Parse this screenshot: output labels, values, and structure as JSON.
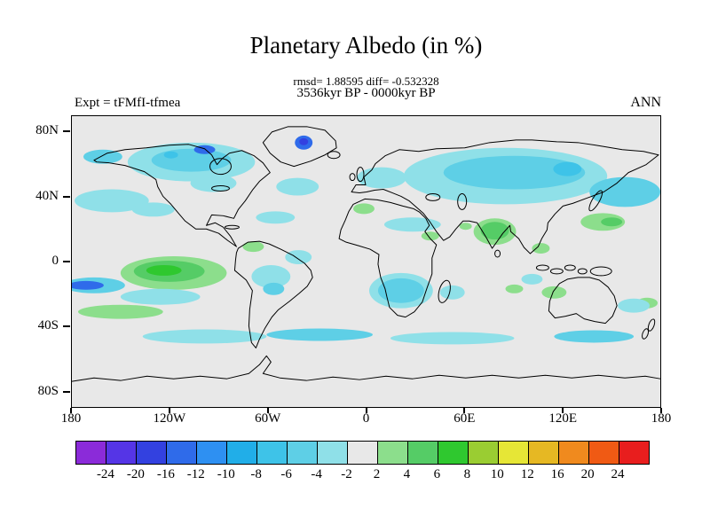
{
  "title": "Planetary Albedo (in %)",
  "subtitle": {
    "stats_line": "rmsd= 1.88595 diff= -0.532328",
    "period_line": "3536kyr BP - 0000kyr BP"
  },
  "experiment_label": "Expt = tFMfI-tfmea",
  "season_label": "ANN",
  "axes": {
    "lat_ticks": [
      "80N",
      "40N",
      "0",
      "40S",
      "80S"
    ],
    "lon_ticks": [
      "180",
      "120W",
      "60W",
      "0",
      "60E",
      "120E",
      "180"
    ]
  },
  "colorbar": {
    "levels": [
      "-24",
      "-20",
      "-16",
      "-12",
      "-10",
      "-8",
      "-6",
      "-4",
      "-2",
      "2",
      "4",
      "6",
      "8",
      "10",
      "12",
      "16",
      "20",
      "24"
    ],
    "colors": [
      "#8B2BD9",
      "#5535E6",
      "#3341E0",
      "#2F6BEA",
      "#2E90F2",
      "#21AEE8",
      "#3EC3E8",
      "#5ECFE6",
      "#8FE0E8",
      "#E8E8E8",
      "#8CDE8C",
      "#55CC66",
      "#2FC82F",
      "#9ACD32",
      "#E6E636",
      "#E6B823",
      "#F08A1E",
      "#F05A14",
      "#E81E1E"
    ]
  },
  "chart_data": {
    "type": "heatmap",
    "subtype": "filled-contour world map (equirectangular)",
    "title": "Planetary Albedo (in %)",
    "variable": "Planetary albedo difference (%)",
    "comparison": "3536kyr BP - 0000kyr BP",
    "experiment": "tFMfI-tfmea",
    "season": "ANN",
    "stats": {
      "rmsd": 1.88595,
      "diff": -0.532328
    },
    "x_range_lon": [
      -180,
      180
    ],
    "y_range_lat": [
      -90,
      90
    ],
    "lon_tick_values": [
      -180,
      -120,
      -60,
      0,
      60,
      120,
      180
    ],
    "lat_tick_values": [
      80,
      40,
      0,
      -40,
      -80
    ],
    "contour_levels": [
      -24,
      -20,
      -16,
      -12,
      -10,
      -8,
      -6,
      -4,
      -2,
      2,
      4,
      6,
      8,
      10,
      12,
      16,
      20,
      24
    ],
    "background_value_range": [
      -2,
      2
    ],
    "background_color": "#E8E8E8",
    "notable_anomalies": [
      {
        "region": "Canada / Canadian Arctic",
        "approx_value_range": [
          -8,
          -2
        ]
      },
      {
        "region": "West Greenland spot",
        "approx_value_range": [
          -16,
          -8
        ]
      },
      {
        "region": "Northern Eurasia / Siberia",
        "approx_value_range": [
          -8,
          -2
        ]
      },
      {
        "region": "Northwest Pacific",
        "approx_value_range": [
          -6,
          -2
        ]
      },
      {
        "region": "Northeast Pacific / west of North America",
        "approx_value_range": [
          -4,
          -2
        ]
      },
      {
        "region": "North Atlantic",
        "approx_value_range": [
          -4,
          -2
        ]
      },
      {
        "region": "Europe",
        "approx_value_range": [
          -4,
          -2
        ]
      },
      {
        "region": "Equatorial eastern Pacific (large green blob)",
        "approx_value_range": [
          2,
          8
        ]
      },
      {
        "region": "Western equatorial Pacific near date line",
        "approx_value_range": [
          -12,
          -4
        ]
      },
      {
        "region": "India",
        "approx_value_range": [
          2,
          6
        ]
      },
      {
        "region": "Northwest Africa green patch",
        "approx_value_range": [
          2,
          4
        ]
      },
      {
        "region": "North Africa band",
        "approx_value_range": [
          -4,
          -2
        ]
      },
      {
        "region": "Brazil / central South America",
        "approx_value_range": [
          -6,
          -2
        ]
      },
      {
        "region": "Northern South America green patch",
        "approx_value_range": [
          2,
          4
        ]
      },
      {
        "region": "Southern Africa",
        "approx_value_range": [
          -6,
          -2
        ]
      },
      {
        "region": "Philippine Sea green patch",
        "approx_value_range": [
          2,
          6
        ]
      },
      {
        "region": "Southeast Pacific green streak (~30S)",
        "approx_value_range": [
          2,
          4
        ]
      },
      {
        "region": "Southern Ocean mid-latitude band (~45S)",
        "approx_value_range": [
          -6,
          -2
        ]
      }
    ],
    "legend_position": "bottom horizontal colorbar",
    "grid": "off"
  }
}
